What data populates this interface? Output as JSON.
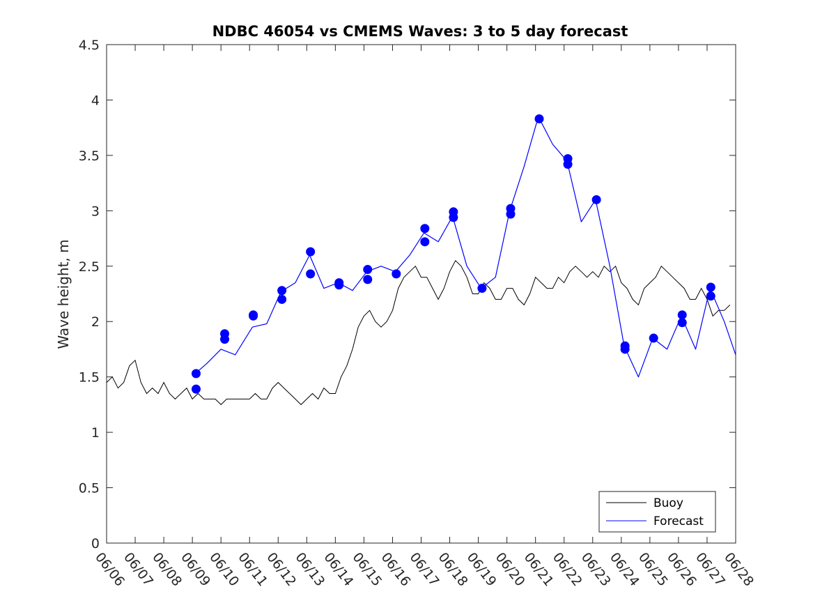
{
  "chart_data": {
    "type": "line",
    "title": "NDBC 46054 vs CMEMS Waves: 3 to 5 day forecast",
    "xlabel": "",
    "ylabel": "Wave height, m",
    "ylim": [
      0,
      4.5
    ],
    "yticks": [
      0,
      0.5,
      1,
      1.5,
      2,
      2.5,
      3,
      3.5,
      4,
      4.5
    ],
    "yticklabels": [
      "0",
      "0.5",
      "1",
      "1.5",
      "2",
      "2.5",
      "3",
      "3.5",
      "4",
      "4.5"
    ],
    "xlim_days": [
      0,
      22
    ],
    "xticklabels": [
      "06/06",
      "06/07",
      "06/08",
      "06/09",
      "06/10",
      "06/11",
      "06/12",
      "06/13",
      "06/14",
      "06/15",
      "06/16",
      "06/17",
      "06/18",
      "06/19",
      "06/20",
      "06/21",
      "06/22",
      "06/23",
      "06/24",
      "06/25",
      "06/26",
      "06/27",
      "06/28"
    ],
    "grid": false,
    "legend": {
      "position": "bottom-right",
      "entries": [
        "Buoy",
        "Forecast"
      ]
    },
    "series": [
      {
        "name": "Buoy",
        "color": "#000000",
        "x": [
          0.0,
          0.2,
          0.4,
          0.6,
          0.8,
          1.0,
          1.2,
          1.4,
          1.6,
          1.8,
          2.0,
          2.2,
          2.4,
          2.6,
          2.8,
          3.0,
          3.2,
          3.4,
          3.6,
          3.8,
          4.0,
          4.2,
          4.4,
          4.6,
          4.8,
          5.0,
          5.2,
          5.4,
          5.6,
          5.8,
          6.0,
          6.2,
          6.4,
          6.6,
          6.8,
          7.0,
          7.2,
          7.4,
          7.6,
          7.8,
          8.0,
          8.2,
          8.4,
          8.6,
          8.8,
          9.0,
          9.2,
          9.4,
          9.6,
          9.8,
          10.0,
          10.2,
          10.4,
          10.6,
          10.8,
          11.0,
          11.2,
          11.4,
          11.6,
          11.8,
          12.0,
          12.2,
          12.4,
          12.6,
          12.8,
          13.0,
          13.2,
          13.4,
          13.6,
          13.8,
          14.0,
          14.2,
          14.4,
          14.6,
          14.8,
          15.0,
          15.2,
          15.4,
          15.6,
          15.8,
          16.0,
          16.2,
          16.4,
          16.6,
          16.8,
          17.0,
          17.2,
          17.4,
          17.6,
          17.8,
          18.0,
          18.2,
          18.4,
          18.6,
          18.8,
          19.0,
          19.2,
          19.4,
          19.6,
          19.8,
          20.0,
          20.2,
          20.4,
          20.6,
          20.8,
          21.0,
          21.2,
          21.4,
          21.6,
          21.8
        ],
        "y": [
          1.45,
          1.5,
          1.4,
          1.45,
          1.6,
          1.65,
          1.45,
          1.35,
          1.4,
          1.35,
          1.45,
          1.35,
          1.3,
          1.35,
          1.4,
          1.3,
          1.35,
          1.3,
          1.3,
          1.3,
          1.25,
          1.3,
          1.3,
          1.3,
          1.3,
          1.3,
          1.35,
          1.3,
          1.3,
          1.4,
          1.45,
          1.4,
          1.35,
          1.3,
          1.25,
          1.3,
          1.35,
          1.3,
          1.4,
          1.35,
          1.35,
          1.5,
          1.6,
          1.75,
          1.95,
          2.05,
          2.1,
          2.0,
          1.95,
          2.0,
          2.1,
          2.3,
          2.4,
          2.45,
          2.5,
          2.4,
          2.4,
          2.3,
          2.2,
          2.3,
          2.45,
          2.55,
          2.5,
          2.4,
          2.25,
          2.25,
          2.35,
          2.3,
          2.2,
          2.2,
          2.3,
          2.3,
          2.2,
          2.15,
          2.25,
          2.4,
          2.35,
          2.3,
          2.3,
          2.4,
          2.35,
          2.45,
          2.5,
          2.45,
          2.4,
          2.45,
          2.4,
          2.5,
          2.45,
          2.5,
          2.35,
          2.3,
          2.2,
          2.15,
          2.3,
          2.35,
          2.4,
          2.5,
          2.45,
          2.4,
          2.35,
          2.3,
          2.2,
          2.2,
          2.3,
          2.2,
          2.05,
          2.1,
          2.1,
          2.15
        ]
      },
      {
        "name": "Forecast",
        "color": "#0000ff",
        "x": [
          3.1,
          3.5,
          4.0,
          4.5,
          5.1,
          5.6,
          6.1,
          6.6,
          7.1,
          7.6,
          8.1,
          8.6,
          9.1,
          9.6,
          10.1,
          10.6,
          11.1,
          11.6,
          12.1,
          12.6,
          13.1,
          13.6,
          14.1,
          14.6,
          15.1,
          15.6,
          16.1,
          16.6,
          17.1,
          17.6,
          18.1,
          18.6,
          19.1,
          19.6,
          20.1,
          20.6,
          21.1,
          21.6,
          22.0
        ],
        "y": [
          1.53,
          1.62,
          1.75,
          1.7,
          1.95,
          1.98,
          2.27,
          2.35,
          2.6,
          2.3,
          2.35,
          2.28,
          2.45,
          2.5,
          2.45,
          2.6,
          2.8,
          2.72,
          2.95,
          2.5,
          2.3,
          2.4,
          3.0,
          3.4,
          3.85,
          3.6,
          3.45,
          2.9,
          3.1,
          2.5,
          1.78,
          1.5,
          1.85,
          1.75,
          2.05,
          1.75,
          2.3,
          2.0,
          1.7
        ]
      }
    ],
    "markers": [
      {
        "x": 3.13,
        "y": 1.53
      },
      {
        "x": 3.13,
        "y": 1.39
      },
      {
        "x": 4.13,
        "y": 1.89
      },
      {
        "x": 4.13,
        "y": 1.84
      },
      {
        "x": 5.13,
        "y": 2.06
      },
      {
        "x": 5.13,
        "y": 2.05
      },
      {
        "x": 6.13,
        "y": 2.28
      },
      {
        "x": 6.13,
        "y": 2.2
      },
      {
        "x": 7.13,
        "y": 2.63
      },
      {
        "x": 7.13,
        "y": 2.43
      },
      {
        "x": 8.13,
        "y": 2.35
      },
      {
        "x": 8.13,
        "y": 2.33
      },
      {
        "x": 9.13,
        "y": 2.47
      },
      {
        "x": 9.13,
        "y": 2.38
      },
      {
        "x": 10.13,
        "y": 2.43
      },
      {
        "x": 11.13,
        "y": 2.84
      },
      {
        "x": 11.13,
        "y": 2.72
      },
      {
        "x": 12.13,
        "y": 2.99
      },
      {
        "x": 12.13,
        "y": 2.94
      },
      {
        "x": 13.13,
        "y": 2.3
      },
      {
        "x": 14.13,
        "y": 3.02
      },
      {
        "x": 14.13,
        "y": 2.97
      },
      {
        "x": 15.13,
        "y": 3.83
      },
      {
        "x": 16.13,
        "y": 3.47
      },
      {
        "x": 16.13,
        "y": 3.42
      },
      {
        "x": 17.13,
        "y": 3.1
      },
      {
        "x": 18.13,
        "y": 1.78
      },
      {
        "x": 18.13,
        "y": 1.75
      },
      {
        "x": 19.13,
        "y": 1.85
      },
      {
        "x": 20.13,
        "y": 2.06
      },
      {
        "x": 20.13,
        "y": 1.99
      },
      {
        "x": 21.13,
        "y": 2.31
      },
      {
        "x": 21.13,
        "y": 2.23
      }
    ]
  }
}
